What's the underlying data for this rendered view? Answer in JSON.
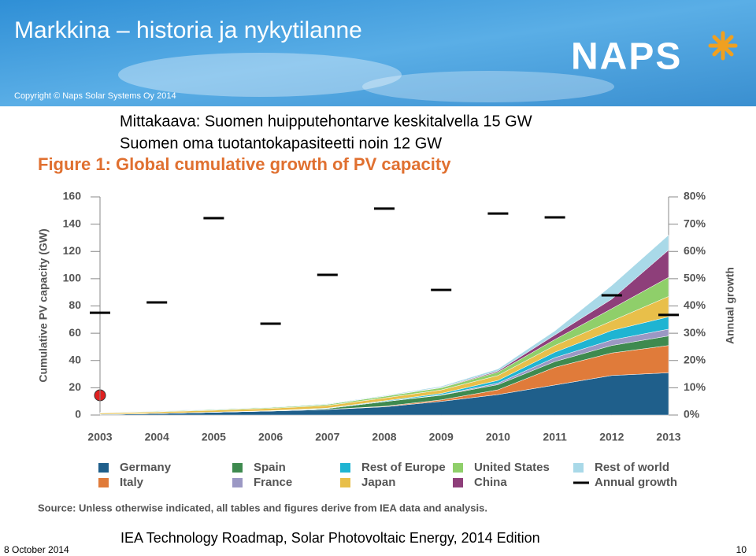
{
  "slide": {
    "title": "Markkina – historia ja nykytilanne",
    "copyright": "Copyright © Naps Solar Systems Oy 2014",
    "logo": "NAPS",
    "subtitle_lines": [
      "Mittakaava: Suomen huipputehontarve keskitalvella 15 GW",
      "Suomen oma tuotantokapasiteetti noin 12 GW"
    ],
    "figure_title": "Figure 1: Global cumulative growth of PV capacity",
    "source": "Source: Unless otherwise indicated, all tables and figures derive from IEA data and analysis.",
    "reference": "IEA Technology Roadmap, Solar Photovoltaic Energy, 2014 Edition",
    "date": "8 October 2014",
    "page_number": "10"
  },
  "chart_data": {
    "type": "area",
    "stacked": true,
    "ylabel": "Cumulative PV capacity (GW)",
    "y2label": "Annual growth",
    "categories": [
      "2003",
      "2004",
      "2005",
      "2006",
      "2007",
      "2008",
      "2009",
      "2010",
      "2011",
      "2012",
      "2013"
    ],
    "ylim": [
      0,
      160
    ],
    "yticks": [
      0,
      20,
      40,
      60,
      80,
      100,
      120,
      140,
      160
    ],
    "y2lim": [
      0,
      80
    ],
    "y2ticks": [
      {
        "value": 0,
        "label": "0%"
      },
      {
        "value": 10,
        "label": "10%"
      },
      {
        "value": 20,
        "label": "20%"
      },
      {
        "value": 30,
        "label": "30%"
      },
      {
        "value": 40,
        "label": "40%"
      },
      {
        "value": 50,
        "label": "50%"
      },
      {
        "value": 60,
        "label": "60%"
      },
      {
        "value": 70,
        "label": "70%"
      },
      {
        "value": 80,
        "label": "80%"
      }
    ],
    "series": [
      {
        "name": "Germany",
        "color": "#1f5f8b",
        "values": [
          0.4,
          1.1,
          2,
          2.9,
          4,
          6,
          10,
          15,
          22,
          29,
          31
        ]
      },
      {
        "name": "Italy",
        "color": "#e07b3a",
        "values": [
          0,
          0,
          0,
          0,
          0.1,
          0.4,
          1.1,
          3.5,
          13,
          16.5,
          20
        ]
      },
      {
        "name": "Spain",
        "color": "#3e8a4f",
        "values": [
          0,
          0,
          0,
          0.1,
          0.7,
          3.4,
          3.4,
          3.8,
          4.2,
          5.5,
          7
        ]
      },
      {
        "name": "France",
        "color": "#9b98c4",
        "values": [
          0,
          0,
          0,
          0,
          0,
          0.1,
          0.3,
          1.1,
          2.9,
          4,
          5
        ]
      },
      {
        "name": "Rest of Europe",
        "color": "#1fb4d2",
        "values": [
          0.1,
          0.1,
          0.1,
          0.2,
          0.3,
          0.5,
          1,
          2,
          4,
          7,
          9
        ]
      },
      {
        "name": "Japan",
        "color": "#e8bf4a",
        "values": [
          0.9,
          1.1,
          1.4,
          1.7,
          1.9,
          2.1,
          2.6,
          3.6,
          4.9,
          7,
          15
        ]
      },
      {
        "name": "United States",
        "color": "#8fcf6a",
        "values": [
          0.3,
          0.4,
          0.5,
          0.6,
          0.8,
          1.2,
          1.6,
          2.5,
          4.4,
          9,
          14
        ]
      },
      {
        "name": "China",
        "color": "#8e3f7a",
        "values": [
          0,
          0.1,
          0.1,
          0.1,
          0.1,
          0.1,
          0.3,
          0.8,
          3.3,
          7,
          20
        ]
      },
      {
        "name": "Rest of world",
        "color": "#a9d9e8",
        "values": [
          0.2,
          0.3,
          0.3,
          0.3,
          0.4,
          0.5,
          0.8,
          1.5,
          3,
          10,
          11
        ]
      },
      {
        "name": "Annual growth",
        "color": "#000000",
        "axis": "y2",
        "marker": "dash",
        "values": [
          37.5,
          41.3,
          72.2,
          33.5,
          51.4,
          75.7,
          45.9,
          73.9,
          72.5,
          43.9,
          36.7
        ]
      }
    ]
  }
}
